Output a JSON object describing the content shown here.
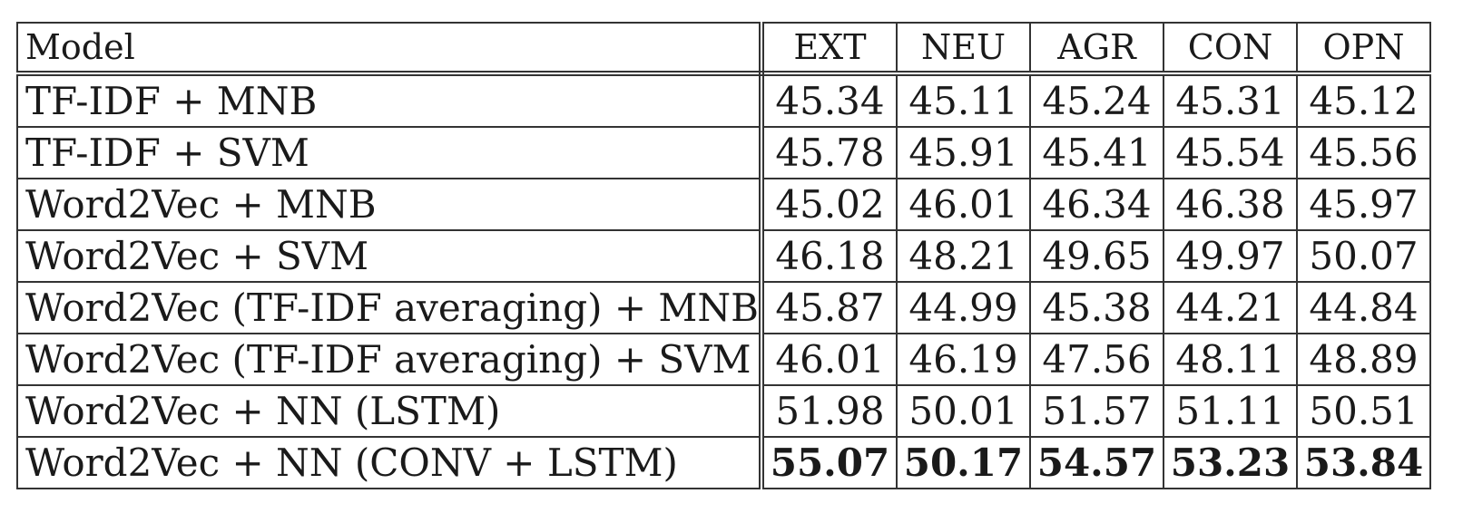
{
  "table": {
    "headers": [
      "Model",
      "EXT",
      "NEU",
      "AGR",
      "CON",
      "OPN"
    ],
    "rows": [
      {
        "model": "TF-IDF + MNB",
        "values": [
          "45.34",
          "45.11",
          "45.24",
          "45.31",
          "45.12"
        ]
      },
      {
        "model": "TF-IDF + SVM",
        "values": [
          "45.78",
          "45.91",
          "45.41",
          "45.54",
          "45.56"
        ]
      },
      {
        "model": "Word2Vec + MNB",
        "values": [
          "45.02",
          "46.01",
          "46.34",
          "46.38",
          "45.97"
        ]
      },
      {
        "model": "Word2Vec + SVM",
        "values": [
          "46.18",
          "48.21",
          "49.65",
          "49.97",
          "50.07"
        ]
      },
      {
        "model": "Word2Vec (TF-IDF averaging) + MNB",
        "values": [
          "45.87",
          "44.99",
          "45.38",
          "44.21",
          "44.84"
        ]
      },
      {
        "model": "Word2Vec (TF-IDF averaging) + SVM",
        "values": [
          "46.01",
          "46.19",
          "47.56",
          "48.11",
          "48.89"
        ]
      },
      {
        "model": "Word2Vec + NN (LSTM)",
        "values": [
          "51.98",
          "50.01",
          "51.57",
          "51.11",
          "50.51"
        ]
      },
      {
        "model": "Word2Vec + NN (CONV + LSTM)",
        "values": [
          "55.07",
          "50.17",
          "54.57",
          "53.23",
          "53.84"
        ]
      }
    ]
  }
}
